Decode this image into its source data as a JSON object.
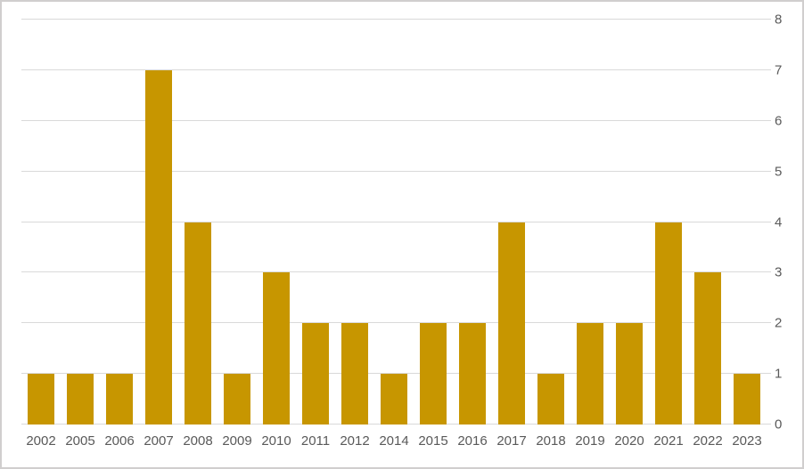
{
  "chart": {
    "background": "#FFFFFF",
    "border_color": "#D0CECE",
    "bar_color": "#C79600",
    "gridline_color": "#D9D9D9",
    "label_color": "#595959"
  },
  "chart_data": {
    "type": "bar",
    "categories": [
      "2002",
      "2005",
      "2006",
      "2007",
      "2008",
      "2009",
      "2010",
      "2011",
      "2012",
      "2014",
      "2015",
      "2016",
      "2017",
      "2018",
      "2019",
      "2020",
      "2021",
      "2022",
      "2023"
    ],
    "values": [
      1,
      1,
      1,
      7,
      4,
      1,
      3,
      2,
      2,
      1,
      2,
      2,
      4,
      1,
      2,
      2,
      4,
      3,
      1
    ],
    "title": "",
    "xlabel": "",
    "ylabel": "",
    "ylim": [
      0,
      8
    ],
    "yticks": [
      0,
      1,
      2,
      3,
      4,
      5,
      6,
      7,
      8
    ],
    "y_axis_position": "right",
    "grid": true,
    "legend_position": "none"
  }
}
